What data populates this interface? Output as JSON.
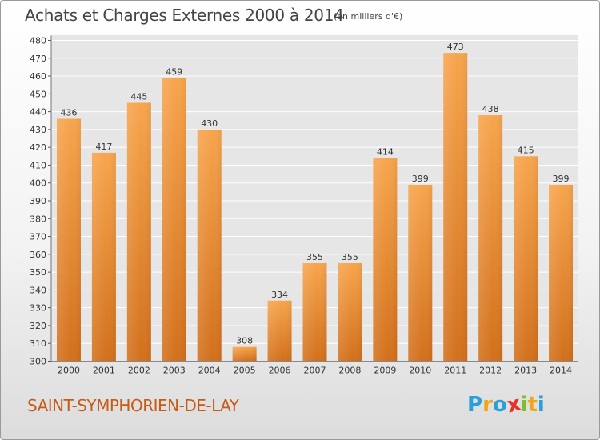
{
  "header": {
    "title": "Achats et Charges Externes 2000 à 2014",
    "subtitle": "(en milliers d'€)"
  },
  "footer": {
    "commune": "SAINT-SYMPHORIEN-DE-LAY",
    "brand": {
      "text": "Proxiti",
      "letters": [
        {
          "ch": "P",
          "color": "#2a9fd8"
        },
        {
          "ch": "r",
          "color": "#f2a51a"
        },
        {
          "ch": "o",
          "color": "#2a9fd8"
        },
        {
          "ch": "x",
          "color": "#e8302a"
        },
        {
          "ch": "i",
          "color": "#7cbf2f"
        },
        {
          "ch": "t",
          "color": "#f2a51a"
        },
        {
          "ch": "i",
          "color": "#2a9fd8"
        }
      ]
    }
  },
  "colors": {
    "bar_top": "#f7a54d",
    "bar_bottom": "#d2701c",
    "grid": "#ffffff",
    "plot_bg": "#e6e6e6",
    "title": "#444444",
    "commune": "#c85a17"
  },
  "chart_data": {
    "type": "bar",
    "title": "Achats et Charges Externes 2000 à 2014",
    "subtitle": "(en milliers d'€)",
    "categories": [
      "2000",
      "2001",
      "2002",
      "2003",
      "2004",
      "2005",
      "2006",
      "2007",
      "2008",
      "2009",
      "2010",
      "2011",
      "2012",
      "2013",
      "2014"
    ],
    "values": [
      436,
      417,
      445,
      459,
      430,
      308,
      334,
      355,
      355,
      414,
      399,
      473,
      438,
      415,
      399
    ],
    "ylim": [
      300,
      480
    ],
    "yticks": [
      300,
      310,
      320,
      330,
      340,
      350,
      360,
      370,
      380,
      390,
      400,
      410,
      420,
      430,
      440,
      450,
      460,
      470,
      480
    ],
    "grid": true,
    "data_labels": true,
    "xlabel": "",
    "ylabel": ""
  }
}
